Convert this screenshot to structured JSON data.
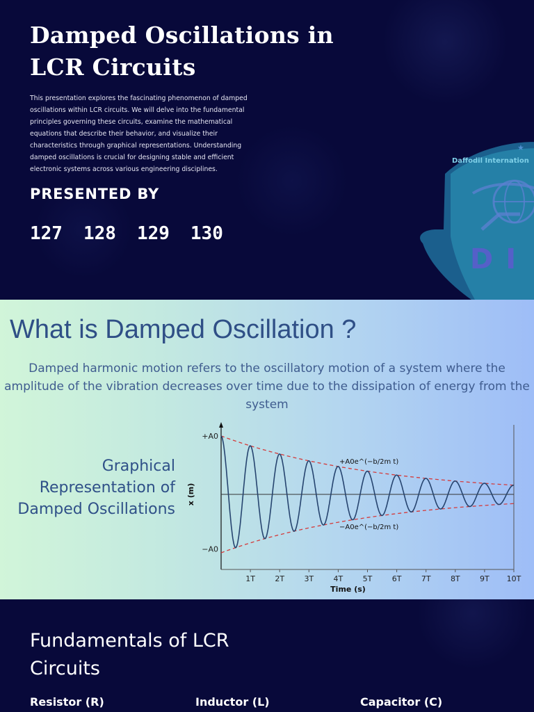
{
  "slide1": {
    "title": "Damped Oscillations in LCR Circuits",
    "description": "This presentation explores the fascinating phenomenon of damped oscillations within LCR circuits. We will delve into the fundamental principles governing these circuits, examine the mathematical equations that describe their behavior, and visualize their characteristics through graphical representations. Understanding damped oscillations is crucial for designing stable and efficient electronic systems across various engineering disciplines.",
    "presented_by": "PRESENTED BY",
    "members": [
      "127",
      "128",
      "129",
      "130"
    ],
    "logo": {
      "text": "Daffodil Internation",
      "letters": "DI"
    }
  },
  "slide2": {
    "title": "What is Damped Oscillation ?",
    "description": "Damped harmonic motion refers to the oscillatory motion of a system where the amplitude of the vibration decreases over time due to the dissipation of energy from the system",
    "graph_label": "Graphical Representation of Damped Oscillations"
  },
  "slide3": {
    "title": "Fundamentals of LCR Circuits",
    "columns": [
      "Resistor (R)",
      "Inductor (L)",
      "Capacitor (C)"
    ]
  },
  "chart_data": {
    "type": "line",
    "title": "",
    "xlabel": "Time (s)",
    "ylabel": "x (m)",
    "x_ticks": [
      "1T",
      "2T",
      "3T",
      "4T",
      "5T",
      "6T",
      "7T",
      "8T",
      "9T",
      "10T"
    ],
    "y_ticks": [
      "+A0",
      "−A0"
    ],
    "annotations": [
      "+A0e^(−b/2m t)",
      "−A0e^(−b/2m t)"
    ],
    "xlim": [
      0,
      10
    ],
    "ylim": [
      -1,
      1
    ],
    "series": [
      {
        "name": "",
        "color": "#26446f",
        "style": "solid",
        "amplitude": 1.0,
        "decay_per_period": 0.185,
        "periods": 10
      },
      {
        "name": "",
        "color": "#d43a3a",
        "style": "dashed",
        "envelope": "+"
      },
      {
        "name": "",
        "color": "#d43a3a",
        "style": "dashed",
        "envelope": "-"
      }
    ]
  }
}
